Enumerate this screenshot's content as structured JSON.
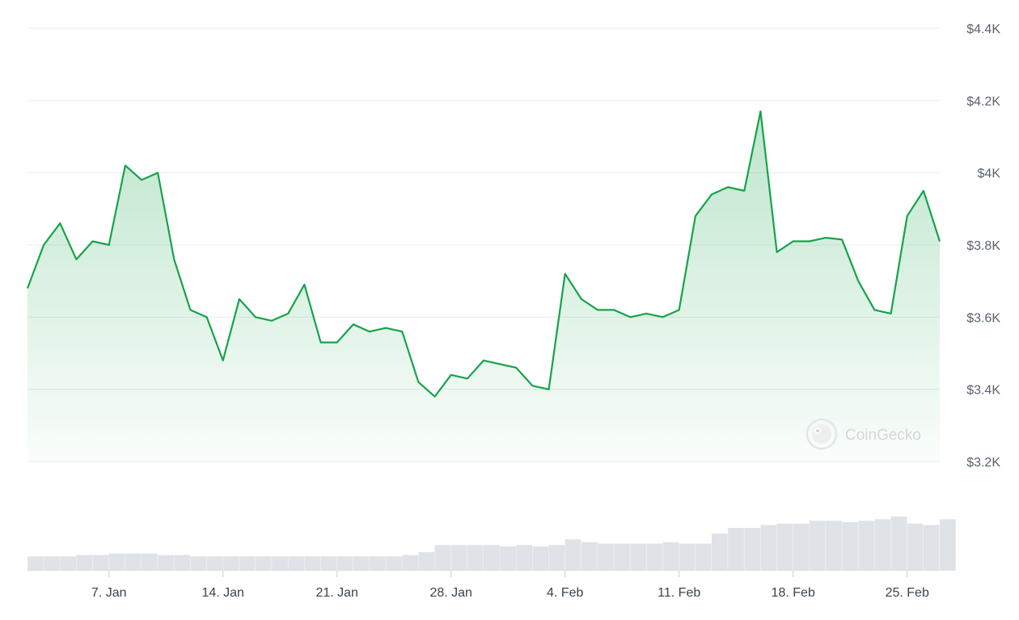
{
  "watermark": {
    "text": "CoinGecko"
  },
  "colors": {
    "line": "#16a34a",
    "area_top": "#16a34a",
    "volume": "#dfe3e7",
    "grid": "#e9ecef"
  },
  "chart_data": {
    "type": "area",
    "title": "",
    "xlabel": "",
    "ylabel": "",
    "ylim": [
      3200,
      4400
    ],
    "y_ticks": [
      3200,
      3400,
      3600,
      3800,
      4000,
      4200,
      4400
    ],
    "y_tick_labels": [
      "$3.2K",
      "$3.4K",
      "$3.6K",
      "$3.8K",
      "$4K",
      "$4.2K",
      "$4.4K"
    ],
    "x_range": [
      "2025-01-02",
      "2025-02-27"
    ],
    "x_ticks": [
      "2025-01-07",
      "2025-01-14",
      "2025-01-21",
      "2025-01-28",
      "2025-02-04",
      "2025-02-11",
      "2025-02-18",
      "2025-02-25"
    ],
    "x_tick_labels": [
      "7. Jan",
      "14. Jan",
      "21. Jan",
      "28. Jan",
      "4. Feb",
      "11. Feb",
      "18. Feb",
      "25. Feb"
    ],
    "grid": true,
    "legend": "none",
    "series": [
      {
        "x": [
          "2025-01-02",
          "2025-01-03",
          "2025-01-04",
          "2025-01-05",
          "2025-01-06",
          "2025-01-07",
          "2025-01-08",
          "2025-01-09",
          "2025-01-10",
          "2025-01-11",
          "2025-01-12",
          "2025-01-13",
          "2025-01-14",
          "2025-01-15",
          "2025-01-16",
          "2025-01-17",
          "2025-01-18",
          "2025-01-19",
          "2025-01-20",
          "2025-01-21",
          "2025-01-22",
          "2025-01-23",
          "2025-01-24",
          "2025-01-25",
          "2025-01-26",
          "2025-01-27",
          "2025-01-28",
          "2025-01-29",
          "2025-01-30",
          "2025-01-31",
          "2025-02-01",
          "2025-02-02",
          "2025-02-03",
          "2025-02-04",
          "2025-02-05",
          "2025-02-06",
          "2025-02-07",
          "2025-02-08",
          "2025-02-09",
          "2025-02-10",
          "2025-02-11",
          "2025-02-12",
          "2025-02-13",
          "2025-02-14",
          "2025-02-15",
          "2025-02-16",
          "2025-02-17",
          "2025-02-18",
          "2025-02-19",
          "2025-02-20",
          "2025-02-21",
          "2025-02-22",
          "2025-02-23",
          "2025-02-24",
          "2025-02-25",
          "2025-02-26",
          "2025-02-27"
        ],
        "values": [
          3680,
          3800,
          3860,
          3760,
          3810,
          3800,
          4020,
          3980,
          4000,
          3760,
          3620,
          3600,
          3480,
          3650,
          3600,
          3590,
          3610,
          3690,
          3530,
          3530,
          3580,
          3560,
          3570,
          3560,
          3420,
          3380,
          3440,
          3430,
          3480,
          3470,
          3460,
          3410,
          3400,
          3720,
          3650,
          3620,
          3620,
          3600,
          3610,
          3600,
          3620,
          3880,
          3940,
          3960,
          3950,
          4170,
          3780,
          3810,
          3810,
          3820,
          3815,
          3700,
          3620,
          3610,
          3880,
          3950,
          3810
        ],
        "values_note": ""
      }
    ],
    "volume": [
      10,
      10,
      10,
      11,
      11,
      12,
      12,
      12,
      11,
      11,
      10,
      10,
      10,
      10,
      10,
      10,
      10,
      10,
      10,
      10,
      10,
      10,
      10,
      11,
      13,
      18,
      18,
      18,
      18,
      17,
      18,
      17,
      18,
      22,
      20,
      19,
      19,
      19,
      19,
      20,
      19,
      19,
      26,
      30,
      30,
      32,
      33,
      33,
      35,
      35,
      34,
      35,
      36,
      38,
      33,
      32,
      36
    ],
    "volume_max": 60
  }
}
